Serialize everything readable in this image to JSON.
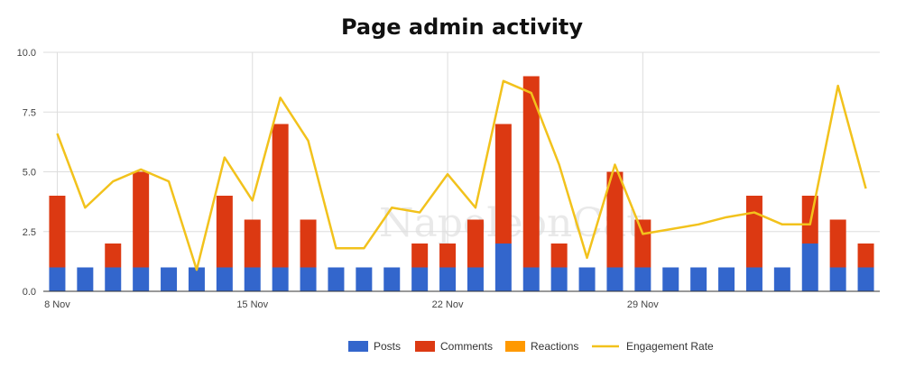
{
  "watermark": "NapoleonCat",
  "chart_data": {
    "type": "bar",
    "title": "Page admin activity",
    "stacked": true,
    "x_start_label": "8 Nov",
    "x_tick_labels": [
      {
        "index": 0,
        "label": "8 Nov"
      },
      {
        "index": 7,
        "label": "15 Nov"
      },
      {
        "index": 14,
        "label": "22 Nov"
      },
      {
        "index": 21,
        "label": "29 Nov"
      }
    ],
    "ylim": [
      0,
      10
    ],
    "y_ticks": [
      "0.0",
      "2.5",
      "5.0",
      "7.5",
      "10.0"
    ],
    "y_tick_values": [
      0,
      2.5,
      5,
      7.5,
      10
    ],
    "grid": true,
    "legend_position": "bottom",
    "series": [
      {
        "name": "Posts",
        "type": "bar",
        "color": "#3366cc",
        "values": [
          1,
          1,
          1,
          1,
          1,
          1,
          1,
          1,
          1,
          1,
          1,
          1,
          1,
          1,
          1,
          1,
          2,
          1,
          1,
          1,
          1,
          1,
          1,
          1,
          1,
          1,
          1,
          2,
          1,
          1
        ]
      },
      {
        "name": "Comments",
        "type": "bar",
        "color": "#dc3912",
        "values": [
          3,
          0,
          1,
          4,
          0,
          0,
          3,
          2,
          6,
          2,
          0,
          0,
          0,
          1,
          1,
          2,
          5,
          8,
          1,
          0,
          4,
          2,
          0,
          0,
          0,
          3,
          0,
          2,
          2,
          1
        ]
      },
      {
        "name": "Reactions",
        "type": "bar",
        "color": "#ff9900",
        "values": [
          0,
          0,
          0,
          0,
          0,
          0,
          0,
          0,
          0,
          0,
          0,
          0,
          0,
          0,
          0,
          0,
          0,
          0,
          0,
          0,
          0,
          0,
          0,
          0,
          0,
          0,
          0,
          0,
          0,
          0
        ]
      },
      {
        "name": "Engagement Rate",
        "type": "line",
        "color": "#f2c21c",
        "values": [
          6.6,
          3.5,
          4.6,
          5.1,
          4.6,
          0.9,
          5.6,
          3.8,
          8.1,
          6.3,
          1.8,
          1.8,
          3.5,
          3.3,
          4.9,
          3.5,
          8.8,
          8.3,
          5.3,
          1.4,
          5.3,
          2.4,
          2.6,
          2.8,
          3.1,
          3.3,
          2.8,
          2.8,
          8.6,
          4.3
        ]
      }
    ]
  }
}
